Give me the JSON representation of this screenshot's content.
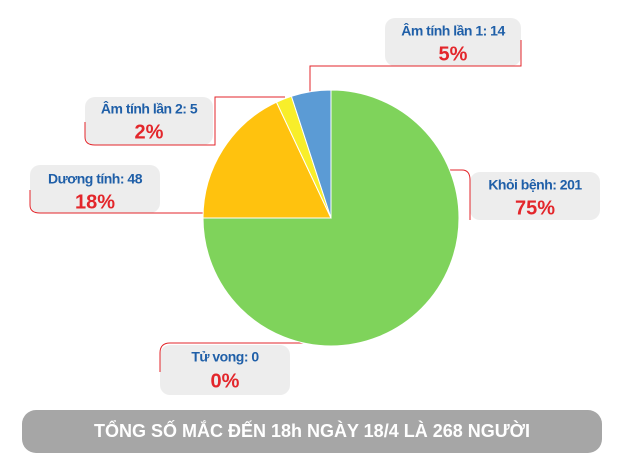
{
  "chart_data": {
    "type": "pie",
    "categories": [
      "Khỏi bệnh: 201",
      "Tử vong: 0",
      "Dương tính: 48",
      "Âm tính lần 2: 5",
      "Âm tính lần 1: 14"
    ],
    "values": [
      75,
      0,
      18,
      2,
      5
    ],
    "value_labels": [
      "75%",
      "0%",
      "18%",
      "2%",
      "5%"
    ],
    "colors": [
      "#7fd35b",
      "#7fd35b",
      "#ffc20e",
      "#f8ee2a",
      "#5b9bd5"
    ],
    "footer": "TỔNG SỐ MẮC ĐẾN 18h NGÀY 18/4 LÀ 268 NGƯỜI"
  }
}
